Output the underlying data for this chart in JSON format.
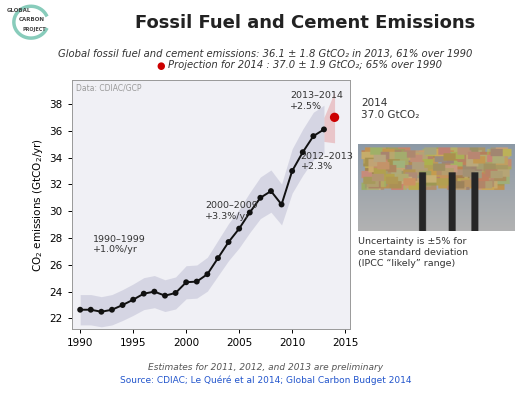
{
  "years": [
    1990,
    1991,
    1992,
    1993,
    1994,
    1995,
    1996,
    1997,
    1998,
    1999,
    2000,
    2001,
    2002,
    2003,
    2004,
    2005,
    2006,
    2007,
    2008,
    2009,
    2010,
    2011,
    2012,
    2013
  ],
  "emissions": [
    22.65,
    22.65,
    22.5,
    22.65,
    23.0,
    23.4,
    23.85,
    24.0,
    23.7,
    23.9,
    24.7,
    24.75,
    25.3,
    26.5,
    27.7,
    28.7,
    29.9,
    31.0,
    31.5,
    30.5,
    33.0,
    34.4,
    35.6,
    36.1
  ],
  "uncertainty_pct": 0.05,
  "projection_year": 2014,
  "projection_value": 37.0,
  "projection_uncertainty": 1.9,
  "last_data_year": 2013,
  "last_data_value": 36.1,
  "last_data_unc": 1.8,
  "plot_bg": "#f0f0f5",
  "line_color": "#111111",
  "marker_color": "#111111",
  "proj_marker_color": "#cc0000",
  "band_color": "#9999bb",
  "band_alpha": 0.3,
  "proj_band_color": "#dd7777",
  "proj_band_alpha": 0.35,
  "title": "Fossil Fuel and Cement Emissions",
  "ylabel": "CO$_2$ emissions (GtCO$_2$/yr)",
  "data_source": "Data: CDIAC/GCP",
  "xlim": [
    1989.2,
    2015.5
  ],
  "ylim": [
    21.2,
    39.8
  ],
  "xticks": [
    1990,
    1995,
    2000,
    2005,
    2010,
    2015
  ],
  "yticks": [
    22,
    24,
    26,
    28,
    30,
    32,
    34,
    36,
    38
  ],
  "footer1": "Estimates for 2011, 2012, and 2013 are preliminary",
  "footer2": "Source: CDIAC; Le Quéré et al 2014; Global Carbon Budget 2014"
}
